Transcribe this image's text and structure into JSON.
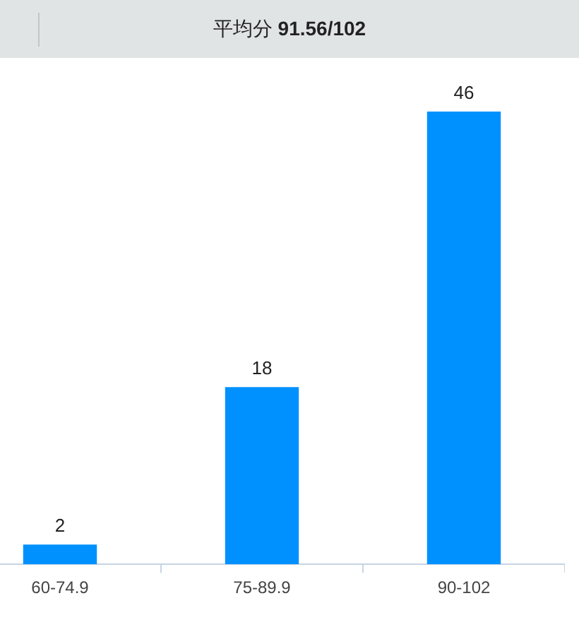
{
  "chart_data": {
    "type": "bar",
    "title": "平均分 91.56/102",
    "categories": [
      "60-74.9",
      "75-89.9",
      "90-102"
    ],
    "values": [
      2,
      18,
      46
    ],
    "color": "#0091ff",
    "data_labels": true,
    "grid": false,
    "legend": false,
    "tick_labels": "x"
  }
}
